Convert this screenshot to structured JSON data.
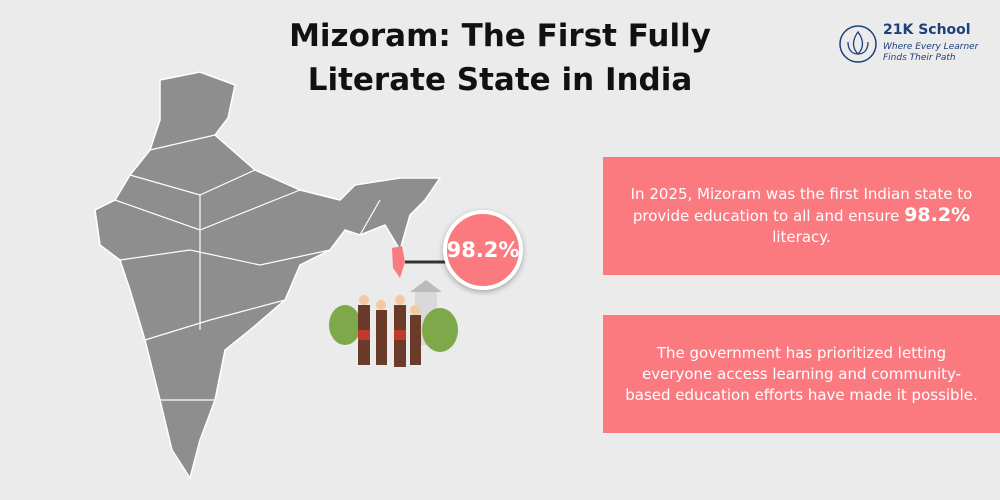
{
  "header": {
    "title": "Mizoram: The First Fully Literate State in India"
  },
  "logo": {
    "name": "21K School",
    "tagline_line1": "Where Every Learner",
    "tagline_line2": "Finds Their Path"
  },
  "callout": {
    "value": "98.2%"
  },
  "cards": [
    {
      "text_before": "In 2025, Mizoram was the first Indian state to provide education to all and ensure",
      "text_bold": "98.2%",
      "text_after": "literacy."
    },
    {
      "text": "The government has prioritized letting everyone access learning and community-based education efforts have made it possible."
    }
  ]
}
